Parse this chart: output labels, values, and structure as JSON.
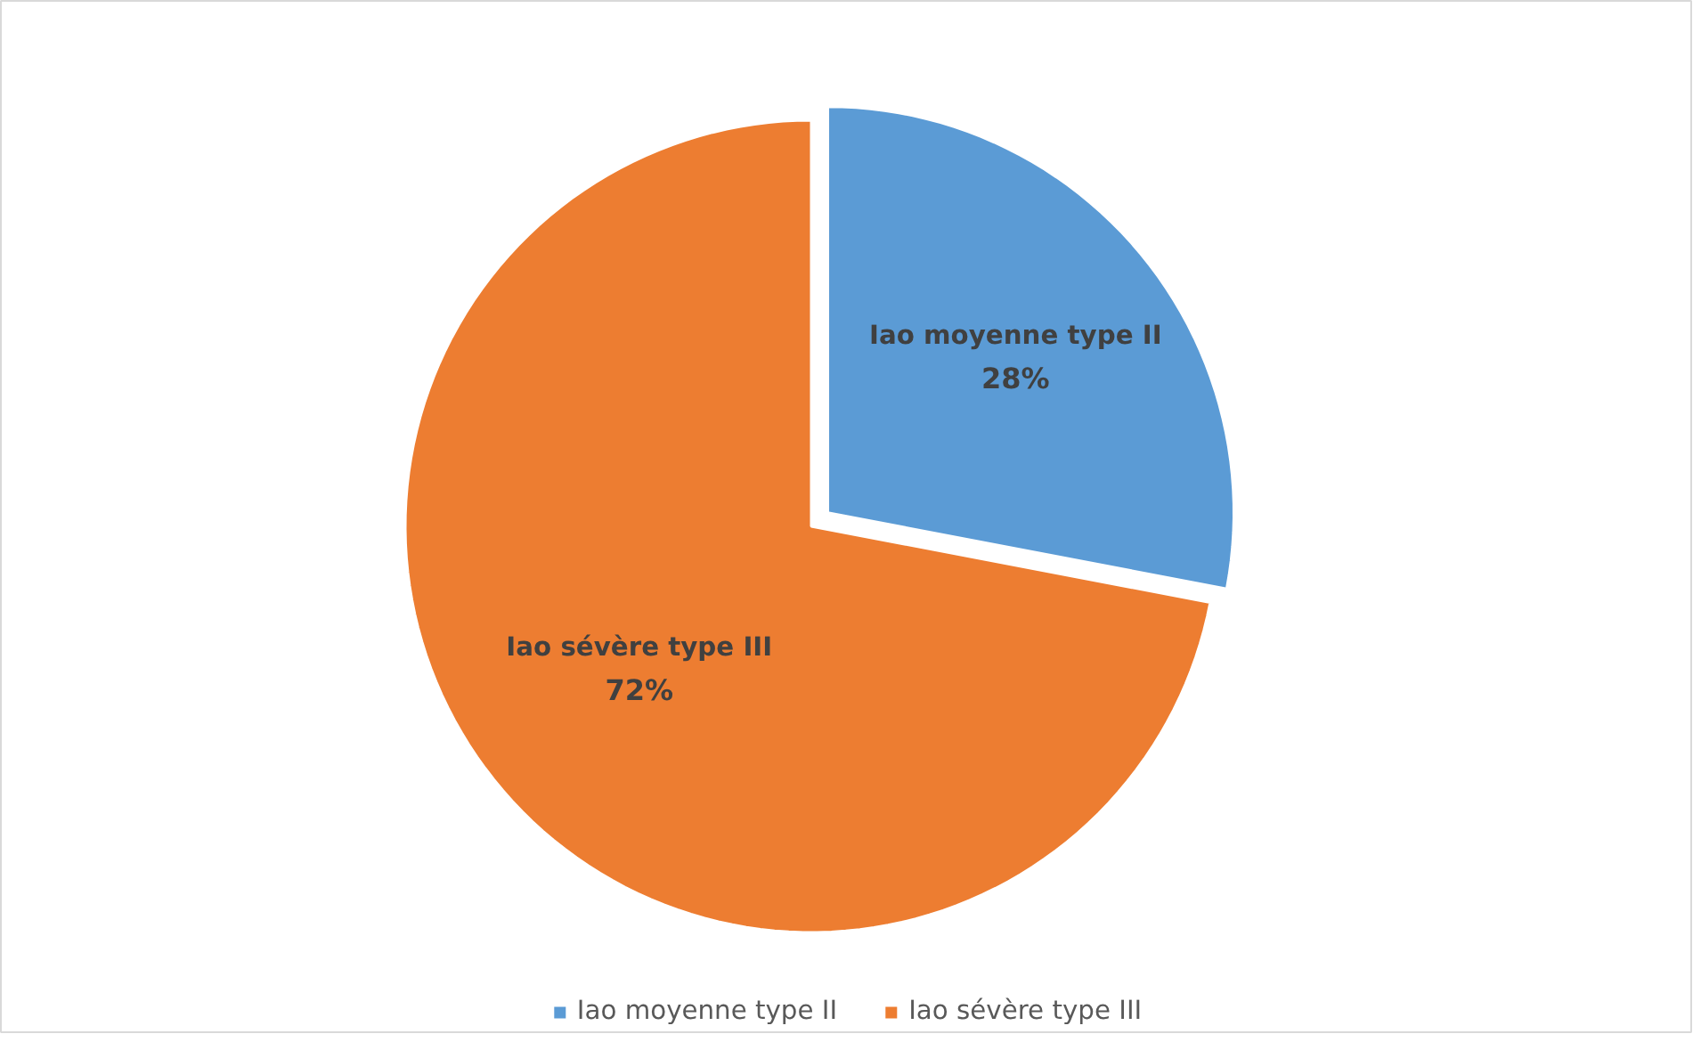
{
  "chart_data": {
    "type": "pie",
    "categories": [
      "Iao moyenne type II",
      "Iao sévère type III"
    ],
    "values": [
      28,
      72
    ],
    "colors": [
      "#5b9bd5",
      "#ed7d31"
    ],
    "value_labels": [
      "28%",
      "72%"
    ],
    "legend": "bottom"
  }
}
